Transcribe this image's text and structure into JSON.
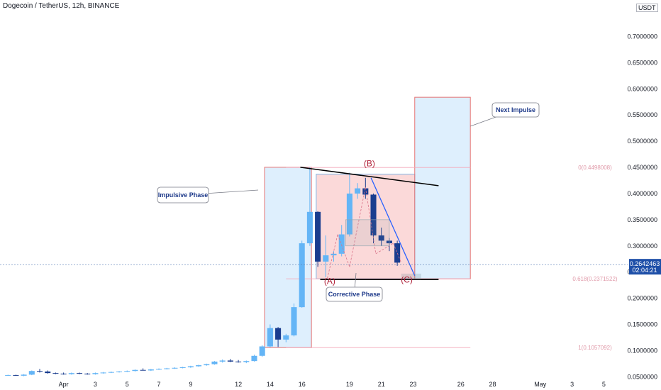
{
  "header": {
    "symbol": "Dogecoin / TetherUS, 12h, BINANCE",
    "currency": "USDT"
  },
  "chart_data": {
    "type": "candlestick",
    "title": "Dogecoin / TetherUS, 12h, BINANCE",
    "ylim": [
      0.045,
      0.74
    ],
    "y_ticks": [
      0.05,
      0.1,
      0.15,
      0.2,
      0.25,
      0.3,
      0.35,
      0.4,
      0.45,
      0.5,
      0.55,
      0.6,
      0.65,
      0.7
    ],
    "y_tick_labels": [
      "0.0500000",
      "0.1000000",
      "0.1500000",
      "0.2000000",
      "0.2500000",
      "0.3000000",
      "0.3500000",
      "0.4000000",
      "0.4500000",
      "0.5000000",
      "0.5500000",
      "0.6000000",
      "0.6500000",
      "0.7000000"
    ],
    "x_range": [
      -8,
      71
    ],
    "x_ticks": [
      {
        "i": 0,
        "label": "Apr"
      },
      {
        "i": 4,
        "label": "3"
      },
      {
        "i": 8,
        "label": "5"
      },
      {
        "i": 12,
        "label": "7"
      },
      {
        "i": 16,
        "label": "9"
      },
      {
        "i": 22,
        "label": "12"
      },
      {
        "i": 26,
        "label": "14"
      },
      {
        "i": 30,
        "label": "16"
      },
      {
        "i": 36,
        "label": "19"
      },
      {
        "i": 40,
        "label": "21"
      },
      {
        "i": 44,
        "label": "23"
      },
      {
        "i": 50,
        "label": "26"
      },
      {
        "i": 54,
        "label": "28"
      },
      {
        "i": 60,
        "label": "May"
      },
      {
        "i": 64,
        "label": "3"
      },
      {
        "i": 68,
        "label": "5"
      }
    ],
    "candles": [
      {
        "i": -7,
        "o": 0.053,
        "h": 0.054,
        "l": 0.052,
        "c": 0.053
      },
      {
        "i": -6,
        "o": 0.053,
        "h": 0.054,
        "l": 0.052,
        "c": 0.052
      },
      {
        "i": -5,
        "o": 0.052,
        "h": 0.055,
        "l": 0.051,
        "c": 0.054
      },
      {
        "i": -4,
        "o": 0.054,
        "h": 0.062,
        "l": 0.053,
        "c": 0.061
      },
      {
        "i": -3,
        "o": 0.061,
        "h": 0.065,
        "l": 0.058,
        "c": 0.06
      },
      {
        "i": -2,
        "o": 0.06,
        "h": 0.062,
        "l": 0.056,
        "c": 0.057
      },
      {
        "i": -1,
        "o": 0.057,
        "h": 0.058,
        "l": 0.055,
        "c": 0.056
      },
      {
        "i": 0,
        "o": 0.056,
        "h": 0.058,
        "l": 0.054,
        "c": 0.055
      },
      {
        "i": 1,
        "o": 0.055,
        "h": 0.058,
        "l": 0.054,
        "c": 0.057
      },
      {
        "i": 2,
        "o": 0.057,
        "h": 0.058,
        "l": 0.055,
        "c": 0.056
      },
      {
        "i": 3,
        "o": 0.056,
        "h": 0.057,
        "l": 0.054,
        "c": 0.055
      },
      {
        "i": 4,
        "o": 0.055,
        "h": 0.058,
        "l": 0.054,
        "c": 0.057
      },
      {
        "i": 5,
        "o": 0.057,
        "h": 0.059,
        "l": 0.056,
        "c": 0.058
      },
      {
        "i": 6,
        "o": 0.058,
        "h": 0.06,
        "l": 0.057,
        "c": 0.059
      },
      {
        "i": 7,
        "o": 0.059,
        "h": 0.061,
        "l": 0.058,
        "c": 0.06
      },
      {
        "i": 8,
        "o": 0.06,
        "h": 0.062,
        "l": 0.059,
        "c": 0.061
      },
      {
        "i": 9,
        "o": 0.061,
        "h": 0.064,
        "l": 0.06,
        "c": 0.063
      },
      {
        "i": 10,
        "o": 0.063,
        "h": 0.066,
        "l": 0.062,
        "c": 0.062
      },
      {
        "i": 11,
        "o": 0.062,
        "h": 0.065,
        "l": 0.061,
        "c": 0.064
      },
      {
        "i": 12,
        "o": 0.064,
        "h": 0.066,
        "l": 0.063,
        "c": 0.065
      },
      {
        "i": 13,
        "o": 0.065,
        "h": 0.067,
        "l": 0.064,
        "c": 0.066
      },
      {
        "i": 14,
        "o": 0.066,
        "h": 0.068,
        "l": 0.065,
        "c": 0.067
      },
      {
        "i": 15,
        "o": 0.067,
        "h": 0.069,
        "l": 0.066,
        "c": 0.068
      },
      {
        "i": 16,
        "o": 0.068,
        "h": 0.071,
        "l": 0.067,
        "c": 0.07
      },
      {
        "i": 17,
        "o": 0.07,
        "h": 0.073,
        "l": 0.069,
        "c": 0.072
      },
      {
        "i": 18,
        "o": 0.072,
        "h": 0.075,
        "l": 0.071,
        "c": 0.074
      },
      {
        "i": 19,
        "o": 0.074,
        "h": 0.08,
        "l": 0.073,
        "c": 0.079
      },
      {
        "i": 20,
        "o": 0.079,
        "h": 0.083,
        "l": 0.077,
        "c": 0.081
      },
      {
        "i": 21,
        "o": 0.081,
        "h": 0.084,
        "l": 0.078,
        "c": 0.079
      },
      {
        "i": 22,
        "o": 0.079,
        "h": 0.082,
        "l": 0.077,
        "c": 0.078
      },
      {
        "i": 23,
        "o": 0.078,
        "h": 0.081,
        "l": 0.076,
        "c": 0.08
      },
      {
        "i": 24,
        "o": 0.08,
        "h": 0.092,
        "l": 0.079,
        "c": 0.09
      },
      {
        "i": 25,
        "o": 0.09,
        "h": 0.11,
        "l": 0.088,
        "c": 0.108
      },
      {
        "i": 26,
        "o": 0.108,
        "h": 0.15,
        "l": 0.106,
        "c": 0.143
      },
      {
        "i": 27,
        "o": 0.143,
        "h": 0.145,
        "l": 0.107,
        "c": 0.121
      },
      {
        "i": 28,
        "o": 0.121,
        "h": 0.132,
        "l": 0.116,
        "c": 0.129
      },
      {
        "i": 29,
        "o": 0.129,
        "h": 0.19,
        "l": 0.127,
        "c": 0.183
      },
      {
        "i": 30,
        "o": 0.183,
        "h": 0.31,
        "l": 0.182,
        "c": 0.305
      },
      {
        "i": 31,
        "o": 0.305,
        "h": 0.45,
        "l": 0.3,
        "c": 0.365
      },
      {
        "i": 32,
        "o": 0.365,
        "h": 0.366,
        "l": 0.26,
        "c": 0.27
      },
      {
        "i": 33,
        "o": 0.27,
        "h": 0.32,
        "l": 0.24,
        "c": 0.282
      },
      {
        "i": 34,
        "o": 0.282,
        "h": 0.29,
        "l": 0.27,
        "c": 0.285
      },
      {
        "i": 35,
        "o": 0.285,
        "h": 0.34,
        "l": 0.28,
        "c": 0.322
      },
      {
        "i": 36,
        "o": 0.322,
        "h": 0.44,
        "l": 0.318,
        "c": 0.4
      },
      {
        "i": 37,
        "o": 0.4,
        "h": 0.42,
        "l": 0.39,
        "c": 0.41
      },
      {
        "i": 38,
        "o": 0.41,
        "h": 0.43,
        "l": 0.39,
        "c": 0.398
      },
      {
        "i": 39,
        "o": 0.398,
        "h": 0.4,
        "l": 0.305,
        "c": 0.32
      },
      {
        "i": 40,
        "o": 0.32,
        "h": 0.335,
        "l": 0.3,
        "c": 0.31
      },
      {
        "i": 41,
        "o": 0.31,
        "h": 0.315,
        "l": 0.29,
        "c": 0.305
      },
      {
        "i": 42,
        "o": 0.305,
        "h": 0.31,
        "l": 0.262,
        "c": 0.268
      }
    ],
    "current_price": "0.2642463",
    "current_price_value": 0.2642463,
    "countdown": "02:04:21",
    "fib_levels": [
      {
        "label": "0(0.4498008)",
        "value": 0.4498008
      },
      {
        "label": "0.618(0.2371522)",
        "value": 0.2371522
      },
      {
        "label": "1(0.1057092)",
        "value": 0.1057092
      }
    ],
    "wave_labels": [
      {
        "text": "(A)",
        "i": 33.5,
        "y": 0.227
      },
      {
        "text": "(B)",
        "i": 38.5,
        "y": 0.452
      },
      {
        "text": "(C)",
        "i": 43.2,
        "y": 0.23
      }
    ],
    "callouts": [
      {
        "text": "Impulsive Phase"
      },
      {
        "text": "Corrective Phase"
      },
      {
        "text": "Next Impulse"
      }
    ]
  }
}
